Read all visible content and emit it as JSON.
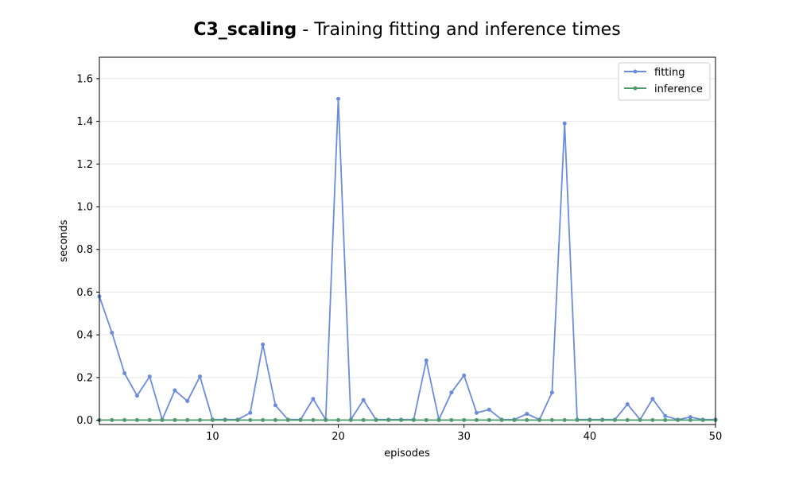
{
  "chart_data": {
    "type": "line",
    "title_bold": "C3_scaling",
    "title_rest": " - Training fitting and inference times",
    "xlabel": "episodes",
    "ylabel": "seconds",
    "xlim": [
      1,
      50
    ],
    "ylim": [
      -0.02,
      1.7
    ],
    "xticks": [
      10,
      20,
      30,
      40,
      50
    ],
    "yticks": [
      "0.0",
      "0.2",
      "0.4",
      "0.6",
      "0.8",
      "1.0",
      "1.2",
      "1.4",
      "1.6"
    ],
    "grid": "horizontal",
    "legend_position": "top-right",
    "x": [
      1,
      2,
      3,
      4,
      5,
      6,
      7,
      8,
      9,
      10,
      11,
      12,
      13,
      14,
      15,
      16,
      17,
      18,
      19,
      20,
      21,
      22,
      23,
      24,
      25,
      26,
      27,
      28,
      29,
      30,
      31,
      32,
      33,
      34,
      35,
      36,
      37,
      38,
      39,
      40,
      41,
      42,
      43,
      44,
      45,
      46,
      47,
      48,
      49,
      50
    ],
    "series": [
      {
        "name": "fitting",
        "color": "#6a8bde",
        "values": [
          0.58,
          0.41,
          0.22,
          0.115,
          0.205,
          0.003,
          0.14,
          0.09,
          0.205,
          0.003,
          0.003,
          0.003,
          0.035,
          0.355,
          0.07,
          0.003,
          0.003,
          0.1,
          0.003,
          1.505,
          0.003,
          0.095,
          0.003,
          0.003,
          0.003,
          0.003,
          0.28,
          0.003,
          0.13,
          0.21,
          0.035,
          0.05,
          0.003,
          0.003,
          0.03,
          0.003,
          0.13,
          1.39,
          0.003,
          0.003,
          0.003,
          0.003,
          0.075,
          0.003,
          0.1,
          0.02,
          0.003,
          0.015,
          0.003,
          0.003
        ]
      },
      {
        "name": "inference",
        "color": "#4e9a6a",
        "values": [
          0.001,
          0.001,
          0.001,
          0.001,
          0.001,
          0.001,
          0.001,
          0.001,
          0.001,
          0.001,
          0.001,
          0.001,
          0.001,
          0.001,
          0.001,
          0.001,
          0.001,
          0.001,
          0.001,
          0.001,
          0.001,
          0.001,
          0.001,
          0.001,
          0.001,
          0.001,
          0.001,
          0.001,
          0.001,
          0.001,
          0.001,
          0.001,
          0.001,
          0.001,
          0.001,
          0.001,
          0.001,
          0.001,
          0.001,
          0.001,
          0.001,
          0.001,
          0.001,
          0.001,
          0.001,
          0.001,
          0.001,
          0.001,
          0.001,
          0.001
        ]
      }
    ]
  }
}
